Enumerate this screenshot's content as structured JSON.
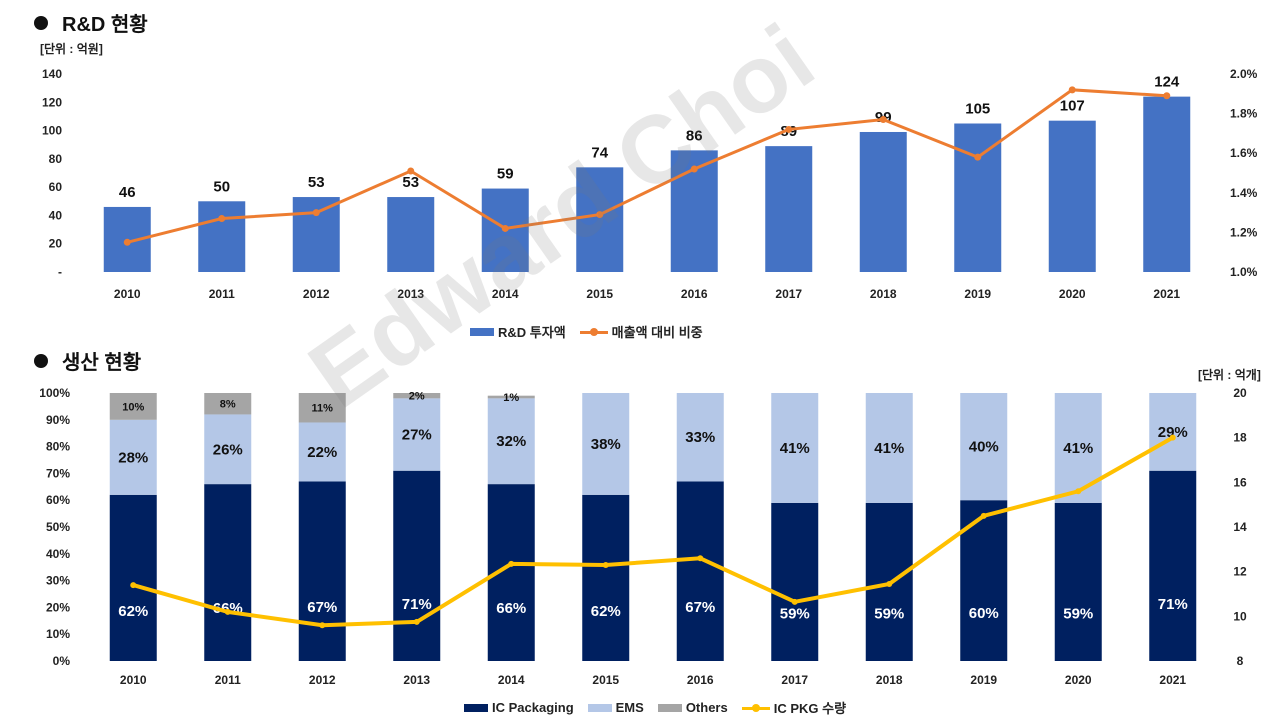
{
  "section1": {
    "title": "R&D 현황",
    "unit": "[단위 : 억원]"
  },
  "section2": {
    "title": "생산 현황",
    "unit": "[단위 : 억개]"
  },
  "watermark": "Edward Choi",
  "colors": {
    "rd_bar": "#4472C4",
    "rd_line": "#ED7D31",
    "ic_pkg": "#002060",
    "ems": "#B4C7E7",
    "others": "#A5A5A5",
    "pkg_line": "#FFC000"
  },
  "chart_data": [
    {
      "type": "bar",
      "title": "R&D 현황",
      "categories": [
        "2010",
        "2011",
        "2012",
        "2013",
        "2014",
        "2015",
        "2016",
        "2017",
        "2018",
        "2019",
        "2020",
        "2021"
      ],
      "series": [
        {
          "name": "R&D 투자액",
          "type": "bar",
          "axis": "left",
          "values": [
            46,
            50,
            53,
            53,
            59,
            74,
            86,
            89,
            99,
            105,
            107,
            124
          ]
        },
        {
          "name": "매출액 대비 비중",
          "type": "line",
          "axis": "right",
          "values": [
            1.15,
            1.27,
            1.3,
            1.51,
            1.22,
            1.29,
            1.52,
            1.72,
            1.77,
            1.58,
            1.92,
            1.89
          ]
        }
      ],
      "y_left": {
        "min": 0,
        "max": 140,
        "ticks": [
          "-",
          "20",
          "40",
          "60",
          "80",
          "100",
          "120",
          "140"
        ]
      },
      "y_right": {
        "min": 1.0,
        "max": 2.0,
        "ticks": [
          "1.0%",
          "1.2%",
          "1.4%",
          "1.6%",
          "1.8%",
          "2.0%"
        ]
      },
      "legend": [
        "R&D 투자액",
        "매출액 대비 비중"
      ]
    },
    {
      "type": "bar",
      "stacked": true,
      "title": "생산 현황",
      "categories": [
        "2010",
        "2011",
        "2012",
        "2013",
        "2014",
        "2015",
        "2016",
        "2017",
        "2018",
        "2019",
        "2020",
        "2021"
      ],
      "series": [
        {
          "name": "IC Packaging",
          "type": "bar",
          "values": [
            62,
            66,
            67,
            71,
            66,
            62,
            67,
            59,
            59,
            60,
            59,
            71
          ],
          "labels": [
            "62%",
            "66%",
            "67%",
            "71%",
            "66%",
            "62%",
            "67%",
            "59%",
            "59%",
            "60%",
            "59%",
            "71%"
          ]
        },
        {
          "name": "EMS",
          "type": "bar",
          "values": [
            28,
            26,
            22,
            27,
            32,
            38,
            33,
            41,
            41,
            40,
            41,
            29
          ],
          "labels": [
            "28%",
            "26%",
            "22%",
            "27%",
            "32%",
            "38%",
            "33%",
            "41%",
            "41%",
            "40%",
            "41%",
            "29%"
          ]
        },
        {
          "name": "Others",
          "type": "bar",
          "values": [
            10,
            8,
            11,
            2,
            1,
            0,
            0,
            0,
            0,
            0,
            0,
            0
          ],
          "labels": [
            "10%",
            "8%",
            "11%",
            "2%",
            "1%",
            "",
            "",
            "",
            "",
            "",
            "",
            ""
          ]
        },
        {
          "name": "IC PKG 수량",
          "type": "line",
          "axis": "right",
          "values": [
            11.4,
            10.2,
            9.6,
            9.75,
            12.35,
            12.3,
            12.6,
            10.65,
            11.45,
            14.5,
            15.6,
            18.0
          ]
        }
      ],
      "y_left": {
        "min": 0,
        "max": 100,
        "ticks": [
          "0%",
          "10%",
          "20%",
          "30%",
          "40%",
          "50%",
          "60%",
          "70%",
          "80%",
          "90%",
          "100%"
        ]
      },
      "y_right": {
        "min": 8,
        "max": 20,
        "ticks": [
          "8",
          "10",
          "12",
          "14",
          "16",
          "18",
          "20"
        ]
      },
      "legend": [
        "IC Packaging",
        "EMS",
        "Others",
        "IC PKG 수량"
      ]
    }
  ]
}
